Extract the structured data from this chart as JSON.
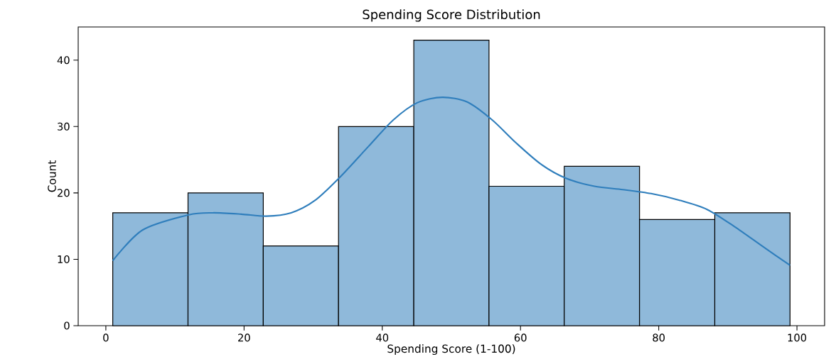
{
  "chart_data": {
    "type": "histogram",
    "title": "Spending Score Distribution",
    "xlabel": "Spending Score (1-100)",
    "ylabel": "Count",
    "xlim": [
      -4,
      104
    ],
    "ylim": [
      0,
      45
    ],
    "xticks": [
      0,
      20,
      40,
      60,
      80,
      100
    ],
    "yticks": [
      0,
      10,
      20,
      30,
      40
    ],
    "series": [
      {
        "color": "#8fb9da",
        "bins": [
          1,
          11.89,
          22.78,
          33.67,
          44.56,
          55.44,
          66.33,
          77.22,
          88.11,
          99
        ],
        "values": [
          17,
          20,
          12,
          30,
          43,
          21,
          24,
          16,
          17
        ]
      },
      {
        "type": "line",
        "color": "#2f7ebc",
        "x": [
          1,
          5.3,
          12,
          15.5,
          19.6,
          23.2,
          26.8,
          30.3,
          33.9,
          38,
          41.6,
          45.1,
          48.7,
          52.3,
          55.9,
          59.4,
          63,
          66.6,
          70.7,
          74.8,
          78.9,
          83,
          87,
          91,
          95.1,
          99
        ],
        "values": [
          9.8,
          14.4,
          16.7,
          17,
          16.8,
          16.5,
          17,
          18.9,
          22.4,
          27,
          31,
          33.6,
          34.4,
          33.7,
          31,
          27.5,
          24.3,
          22.2,
          21,
          20.5,
          19.9,
          18.9,
          17.5,
          14.9,
          11.9,
          9.1
        ]
      }
    ]
  }
}
